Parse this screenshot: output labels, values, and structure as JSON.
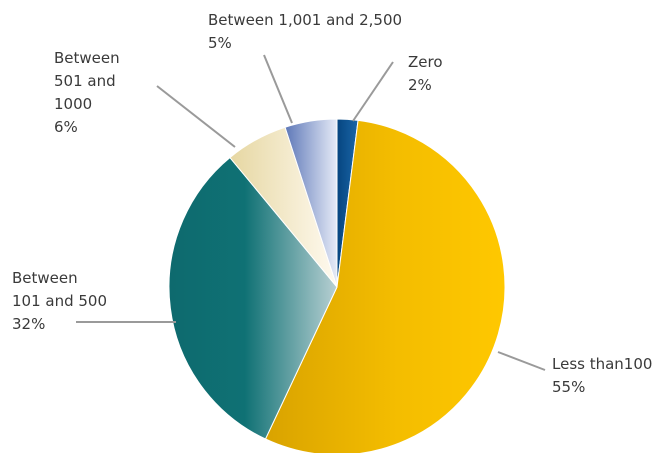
{
  "chart_data": {
    "type": "pie",
    "slices": [
      {
        "label_lines": [
          "Zero"
        ],
        "value_label": "2%",
        "value": 2,
        "color": "#0a4f8f"
      },
      {
        "label_lines": [
          "Less than100"
        ],
        "value_label": "55%",
        "value": 55,
        "color": "#f2b800"
      },
      {
        "label_lines": [
          "Between",
          "101 and 500"
        ],
        "value_label": "32%",
        "value": 32,
        "color": "#0f6e72"
      },
      {
        "label_lines": [
          "Between",
          "501 and",
          "1000"
        ],
        "value_label": "6%",
        "value": 6,
        "color": "#efe2b4"
      },
      {
        "label_lines": [
          "Between 1,001 and 2,500"
        ],
        "value_label": "5%",
        "value": 5,
        "color": "#7f93c6"
      }
    ],
    "legend": "none",
    "start_position": "top",
    "direction": "clockwise"
  }
}
